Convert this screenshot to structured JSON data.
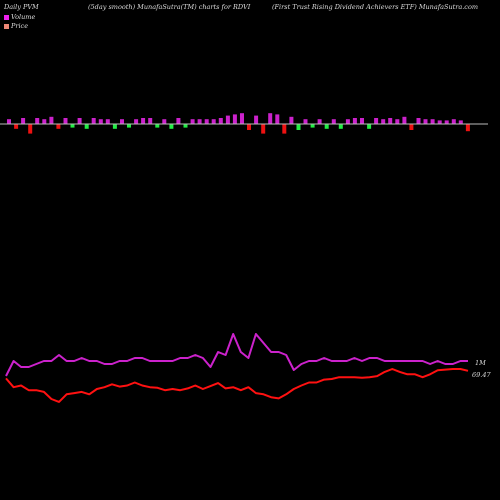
{
  "header": {
    "left": "Daily PVM",
    "middle": "(5day smooth) MunafaSutra(TM) charts for RDVI",
    "right": "(First Trust Rising Dividend Achievers ETF) MunafaSutra.com"
  },
  "legend": {
    "volume_label": "Volume",
    "price_label": "Price",
    "volume_color": "#ee22ee",
    "price_color": "#ee8877"
  },
  "colors": {
    "background": "#000000",
    "volume_line": "#cc22cc",
    "price_line": "#ff1111",
    "bar_up": "#cc22cc",
    "bar_down_red": "#ee1111",
    "bar_down_green": "#22ee44",
    "axis": "#bbbbbb"
  },
  "chart_data": {
    "type": "line",
    "volume_axis_label": "1M",
    "price_axis_label": "69.47",
    "bars": {
      "values": [
        0.8,
        -0.8,
        1.0,
        -1.6,
        1.0,
        0.8,
        1.2,
        -0.8,
        1.0,
        -0.6,
        1.0,
        -0.8,
        1.0,
        0.8,
        0.8,
        -0.8,
        0.8,
        -0.6,
        0.8,
        1.0,
        1.0,
        -0.6,
        0.8,
        -0.8,
        1.0,
        -0.6,
        0.8,
        0.8,
        0.8,
        0.8,
        1.0,
        1.4,
        1.6,
        1.8,
        -1.0,
        1.4,
        -1.6,
        1.8,
        1.6,
        -1.6,
        1.2,
        -1.0,
        0.8,
        -0.6,
        0.8,
        -0.8,
        0.8,
        -0.8,
        0.8,
        1.0,
        1.0,
        -0.8,
        1.0,
        0.8,
        1.0,
        0.8,
        1.2,
        -1.0,
        1.0,
        0.8,
        0.8,
        0.6,
        0.6,
        0.8,
        0.6,
        -1.2
      ],
      "colors": [
        "up",
        "red",
        "up",
        "red",
        "up",
        "up",
        "up",
        "red",
        "up",
        "green",
        "up",
        "green",
        "up",
        "up",
        "up",
        "green",
        "up",
        "green",
        "up",
        "up",
        "up",
        "green",
        "up",
        "green",
        "up",
        "green",
        "up",
        "up",
        "up",
        "up",
        "up",
        "up",
        "up",
        "up",
        "red",
        "up",
        "red",
        "up",
        "up",
        "red",
        "up",
        "green",
        "up",
        "green",
        "up",
        "green",
        "up",
        "green",
        "up",
        "up",
        "up",
        "green",
        "up",
        "up",
        "up",
        "up",
        "up",
        "red",
        "up",
        "up",
        "up",
        "up",
        "up",
        "up",
        "up",
        "red"
      ]
    },
    "series": [
      {
        "key": "volume",
        "values": [
          56,
          61,
          59,
          59,
          60,
          61,
          61,
          63,
          61,
          61,
          62,
          61,
          61,
          60,
          60,
          61,
          61,
          62,
          62,
          61,
          61,
          61,
          61,
          62,
          62,
          63,
          62,
          59,
          64,
          63,
          70,
          64,
          62,
          70,
          67,
          64,
          64,
          63,
          58,
          60,
          61,
          61,
          62,
          61,
          61,
          61,
          62,
          61,
          62,
          62,
          61,
          61,
          61,
          61,
          61,
          61,
          60,
          61,
          60,
          60,
          61,
          61
        ]
      },
      {
        "key": "price",
        "values": [
          73.0,
          71.5,
          71.8,
          71.0,
          71.0,
          70.7,
          69.5,
          69.0,
          70.3,
          70.5,
          70.7,
          70.3,
          71.2,
          71.5,
          72.0,
          71.6,
          71.8,
          72.3,
          71.8,
          71.5,
          71.4,
          71.0,
          71.2,
          71.0,
          71.3,
          71.8,
          71.2,
          71.7,
          72.2,
          71.3,
          71.5,
          71.0,
          71.5,
          70.5,
          70.3,
          69.8,
          69.6,
          70.3,
          71.2,
          71.8,
          72.3,
          72.3,
          72.8,
          72.9,
          73.2,
          73.2,
          73.2,
          73.1,
          73.2,
          73.4,
          74.1,
          74.6,
          74.1,
          73.7,
          73.7,
          73.2,
          73.7,
          74.4,
          74.5,
          74.6,
          74.6,
          74.3
        ]
      }
    ]
  }
}
